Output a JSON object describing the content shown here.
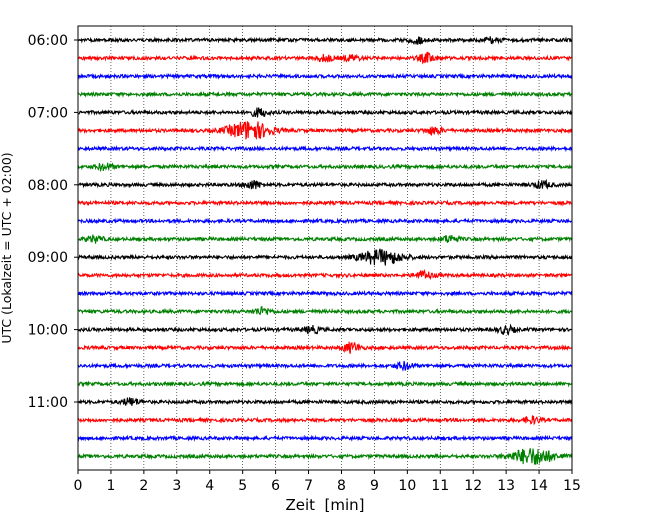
{
  "chart_data": {
    "type": "line",
    "title": "",
    "xlabel": "Zeit  [min]",
    "ylabel": "UTC (Lokalzeit = UTC + 02:00)",
    "xlim": [
      0,
      15
    ],
    "x_ticks": [
      "0",
      "1",
      "2",
      "3",
      "4",
      "5",
      "6",
      "7",
      "8",
      "9",
      "10",
      "11",
      "12",
      "13",
      "14",
      "15"
    ],
    "y_ticks": [
      "06:00",
      "07:00",
      "08:00",
      "09:00",
      "10:00",
      "11:00"
    ],
    "row_start_utc": "06:00",
    "row_interval_min": 15,
    "row_count": 24,
    "grid": "vertical dotted at each minute",
    "trace_colors": [
      "#000000",
      "#ff0000",
      "#0000ff",
      "#008000"
    ],
    "events": [
      {
        "row_start": "06:00",
        "minute": 10.3,
        "strength": 0.35
      },
      {
        "row_start": "06:00",
        "minute": 12.6,
        "strength": 0.3
      },
      {
        "row_start": "06:15",
        "minute": 7.5,
        "strength": 0.35
      },
      {
        "row_start": "06:15",
        "minute": 8.3,
        "strength": 0.3
      },
      {
        "row_start": "06:15",
        "minute": 10.6,
        "strength": 0.5
      },
      {
        "row_start": "07:00",
        "minute": 5.5,
        "strength": 0.45
      },
      {
        "row_start": "07:15",
        "minute": 5.2,
        "strength": 1.0
      },
      {
        "row_start": "07:15",
        "minute": 10.8,
        "strength": 0.4
      },
      {
        "row_start": "07:45",
        "minute": 0.8,
        "strength": 0.35
      },
      {
        "row_start": "08:00",
        "minute": 5.3,
        "strength": 0.45
      },
      {
        "row_start": "08:00",
        "minute": 14.1,
        "strength": 0.4
      },
      {
        "row_start": "08:45",
        "minute": 0.5,
        "strength": 0.35
      },
      {
        "row_start": "08:45",
        "minute": 11.3,
        "strength": 0.4
      },
      {
        "row_start": "09:00",
        "minute": 9.2,
        "strength": 0.8
      },
      {
        "row_start": "09:15",
        "minute": 10.5,
        "strength": 0.45
      },
      {
        "row_start": "09:45",
        "minute": 5.6,
        "strength": 0.4
      },
      {
        "row_start": "10:00",
        "minute": 7.1,
        "strength": 0.35
      },
      {
        "row_start": "10:00",
        "minute": 13.0,
        "strength": 0.4
      },
      {
        "row_start": "10:15",
        "minute": 8.3,
        "strength": 0.55
      },
      {
        "row_start": "10:30",
        "minute": 9.9,
        "strength": 0.4
      },
      {
        "row_start": "11:00",
        "minute": 1.6,
        "strength": 0.4
      },
      {
        "row_start": "11:15",
        "minute": 13.8,
        "strength": 0.35
      },
      {
        "row_start": "11:45",
        "minute": 13.8,
        "strength": 0.9
      }
    ]
  }
}
